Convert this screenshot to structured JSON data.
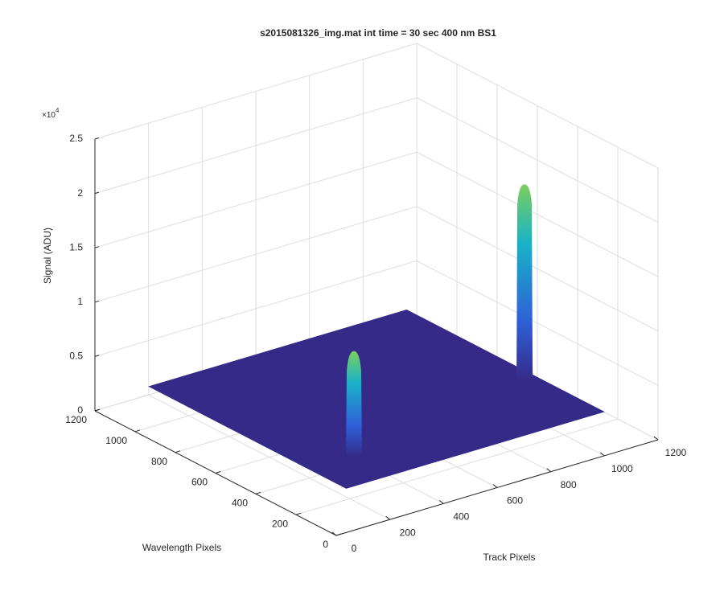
{
  "chart_data": {
    "type": "surface",
    "title": "s2015081326_img.mat int time = 30 sec  400 nm BS1",
    "xlabel": "Track Pixels",
    "ylabel": "Wavelength Pixels",
    "zlabel": "Signal (ADU)",
    "z_multiplier": {
      "base": "×10",
      "exponent": 4
    },
    "xlim": [
      0,
      1200
    ],
    "xticks": [
      0,
      200,
      400,
      600,
      800,
      1000,
      1200
    ],
    "ylim": [
      0,
      1200
    ],
    "yticks": [
      0,
      200,
      400,
      600,
      800,
      1000,
      1200
    ],
    "zlim": [
      0,
      2.5
    ],
    "zticks": [
      0,
      0.5,
      1,
      1.5,
      2,
      2.5
    ],
    "grid": true,
    "surface": {
      "x": [
        240,
        1200
      ],
      "y": [
        270,
        1250
      ],
      "z": 0,
      "color": "#352a87"
    },
    "peaks": [
      {
        "x": 414,
        "y": 464,
        "z": 0.95
      },
      {
        "x": 1168,
        "y": 621,
        "z": 1.78
      }
    ]
  }
}
